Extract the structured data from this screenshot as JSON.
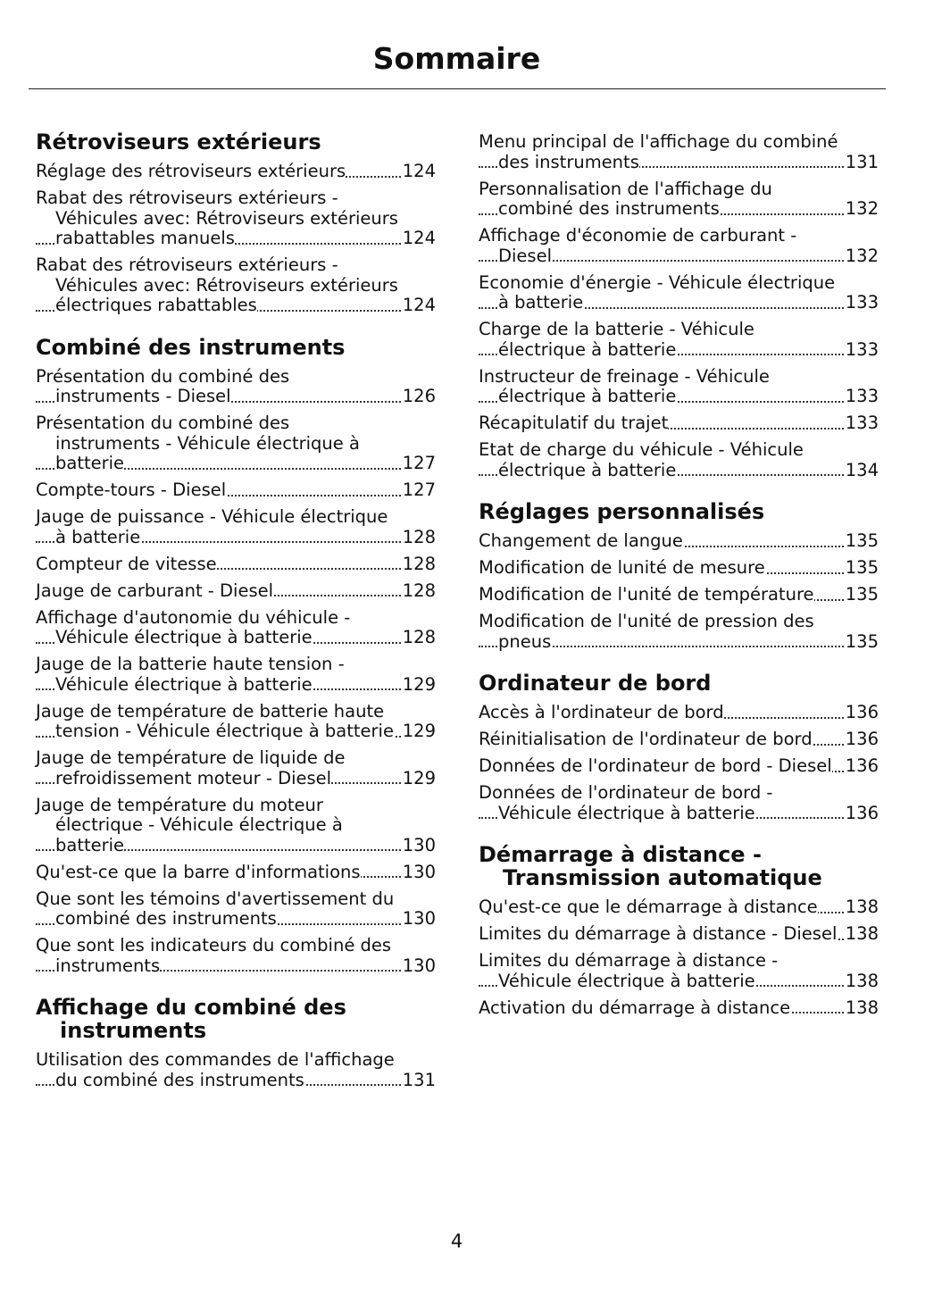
{
  "header": {
    "title": "Sommaire"
  },
  "columns": [
    {
      "sections": [
        {
          "heading": "Rétroviseurs extérieurs",
          "entries": [
            {
              "text": "Réglage des rétroviseurs extérieurs",
              "page": "124"
            },
            {
              "text": "Rabat des rétroviseurs extérieurs - Véhicules avec: Rétroviseurs extérieurs rabattables manuels",
              "page": "124"
            },
            {
              "text": "Rabat des rétroviseurs extérieurs - Véhicules avec: Rétroviseurs extérieurs électriques rabattables",
              "page": "124"
            }
          ]
        },
        {
          "heading": "Combiné des instruments",
          "entries": [
            {
              "text": "Présentation du combiné des instruments - Diesel",
              "page": "126"
            },
            {
              "text": "Présentation du combiné des instruments - Véhicule électrique à batterie",
              "page": "127"
            },
            {
              "text": "Compte-tours - Diesel",
              "page": "127"
            },
            {
              "text": "Jauge de puissance - Véhicule électrique à batterie",
              "page": "128"
            },
            {
              "text": "Compteur de vitesse",
              "page": "128"
            },
            {
              "text": "Jauge de carburant - Diesel",
              "page": "128"
            },
            {
              "text": "Affichage d'autonomie du véhicule - Véhicule électrique à batterie",
              "page": "128"
            },
            {
              "text": "Jauge de la batterie haute tension - Véhicule électrique à batterie",
              "page": "129"
            },
            {
              "text": "Jauge de température de batterie haute tension - Véhicule électrique à batterie",
              "page": "129"
            },
            {
              "text": "Jauge de température de liquide de refroidissement moteur - Diesel",
              "page": "129"
            },
            {
              "text": "Jauge de température du moteur électrique - Véhicule électrique à batterie",
              "page": "130"
            },
            {
              "text": "Qu'est-ce que la barre d'informations",
              "page": "130"
            },
            {
              "text": "Que sont les témoins d'avertissement du combiné des instruments",
              "page": "130"
            },
            {
              "text": "Que sont les indicateurs du combiné des instruments",
              "page": "130"
            }
          ]
        },
        {
          "heading": "Affichage du combiné des instruments",
          "entries": [
            {
              "text": "Utilisation des commandes de l'affichage du combiné des instruments",
              "page": "131"
            }
          ]
        }
      ]
    },
    {
      "sections": [
        {
          "entries": [
            {
              "text": "Menu principal de l'affichage du combiné des instruments",
              "page": "131"
            },
            {
              "text": "Personnalisation de l'affichage du combiné des instruments",
              "page": "132"
            },
            {
              "text": "Affichage d'économie de carburant - Diesel",
              "page": "132"
            },
            {
              "text": "Economie d'énergie - Véhicule électrique à batterie",
              "page": "133"
            },
            {
              "text": "Charge de la batterie - Véhicule électrique à batterie",
              "page": "133"
            },
            {
              "text": "Instructeur de freinage - Véhicule électrique à batterie",
              "page": "133"
            },
            {
              "text": "Récapitulatif du trajet",
              "page": "133"
            },
            {
              "text": "Etat de charge du véhicule - Véhicule électrique à batterie",
              "page": "134"
            }
          ]
        },
        {
          "heading": "Réglages personnalisés",
          "entries": [
            {
              "text": "Changement de langue",
              "page": "135"
            },
            {
              "text": "Modification de lunité de mesure",
              "page": "135"
            },
            {
              "text": "Modification de l'unité de température",
              "page": "135"
            },
            {
              "text": "Modification de l'unité de pression des pneus",
              "page": "135"
            }
          ]
        },
        {
          "heading": "Ordinateur de bord",
          "entries": [
            {
              "text": "Accès à l'ordinateur de bord",
              "page": "136"
            },
            {
              "text": "Réinitialisation de l'ordinateur de bord",
              "page": "136"
            },
            {
              "text": "Données de l'ordinateur de bord - Diesel",
              "page": "136"
            },
            {
              "text": "Données de l'ordinateur de bord - Véhicule électrique à batterie",
              "page": "136"
            }
          ]
        },
        {
          "heading": "Démarrage à distance - Transmission automatique",
          "entries": [
            {
              "text": "Qu'est-ce que le démarrage à distance",
              "page": "138"
            },
            {
              "text": "Limites du démarrage à distance - Diesel",
              "page": "138"
            },
            {
              "text": "Limites du démarrage à distance - Véhicule électrique à batterie",
              "page": "138"
            },
            {
              "text": "Activation du démarrage à distance",
              "page": "138"
            }
          ]
        }
      ]
    }
  ],
  "footer": {
    "page_number": "4"
  }
}
